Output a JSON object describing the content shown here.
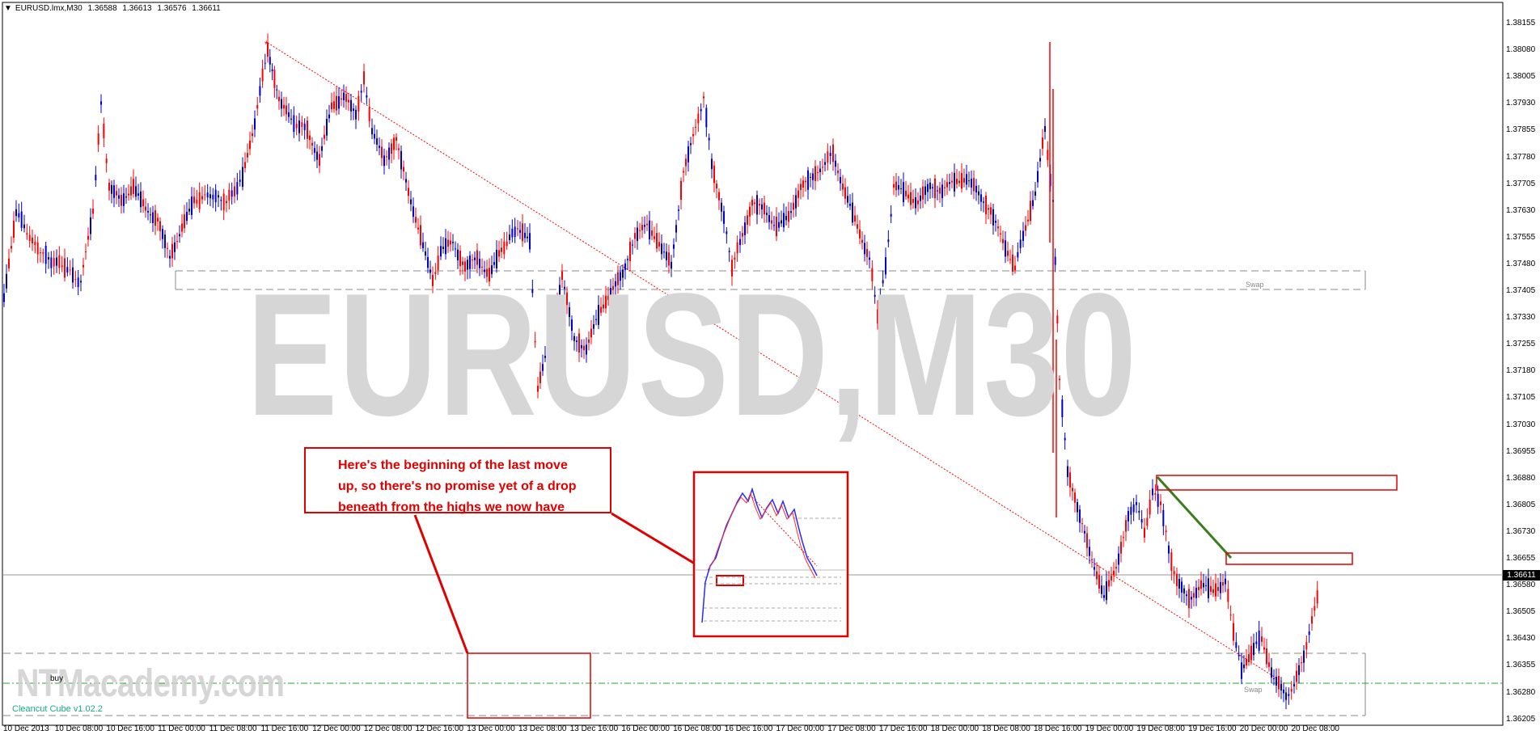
{
  "header": {
    "symbol": "EURUSD.lmx,M30",
    "open": "1.36588",
    "high": "1.36613",
    "low": "1.36576",
    "close": "1.36611"
  },
  "watermark": {
    "title": "EURUSD,M30",
    "academy": "NTMacademy.com"
  },
  "labels": {
    "buy": "buy",
    "indicator": "Cleancut Cube v1.02.2",
    "swap_upper": "Swap",
    "swap_lower": "Swap"
  },
  "annotation": {
    "lines": [
      "Here's the beginning of the last move",
      "up, so there's no promise yet of a drop",
      "beneath from the highs we now have"
    ]
  },
  "price_axis": {
    "levels": [
      "1.38155",
      "1.38080",
      "1.38005",
      "1.37930",
      "1.37855",
      "1.37780",
      "1.37705",
      "1.37630",
      "1.37555",
      "1.37480",
      "1.37405",
      "1.37330",
      "1.37255",
      "1.37180",
      "1.37105",
      "1.37030",
      "1.36955",
      "1.36880",
      "1.36805",
      "1.36730",
      "1.36655",
      "1.36580",
      "1.36505",
      "1.36430",
      "1.36355",
      "1.36280",
      "1.36205"
    ],
    "current": "1.36611"
  },
  "time_axis": {
    "labels": [
      "10 Dec 2013",
      "10 Dec 08:00",
      "10 Dec 16:00",
      "11 Dec 00:00",
      "11 Dec 08:00",
      "11 Dec 16:00",
      "12 Dec 00:00",
      "12 Dec 08:00",
      "12 Dec 16:00",
      "13 Dec 00:00",
      "13 Dec 08:00",
      "13 Dec 16:00",
      "16 Dec 00:00",
      "16 Dec 08:00",
      "16 Dec 16:00",
      "17 Dec 00:00",
      "17 Dec 08:00",
      "17 Dec 16:00",
      "18 Dec 00:00",
      "18 Dec 08:00",
      "18 Dec 16:00",
      "19 Dec 00:00",
      "19 Dec 08:00",
      "19 Dec 16:00",
      "20 Dec 00:00",
      "20 Dec 08:00"
    ]
  },
  "colors": {
    "bull": "#0000cc",
    "bear": "#ff0000",
    "annotation": "#e00000",
    "trendline": "#ff0000",
    "green_line": "#3a7d1e",
    "buy_line": "#22aa22"
  }
}
